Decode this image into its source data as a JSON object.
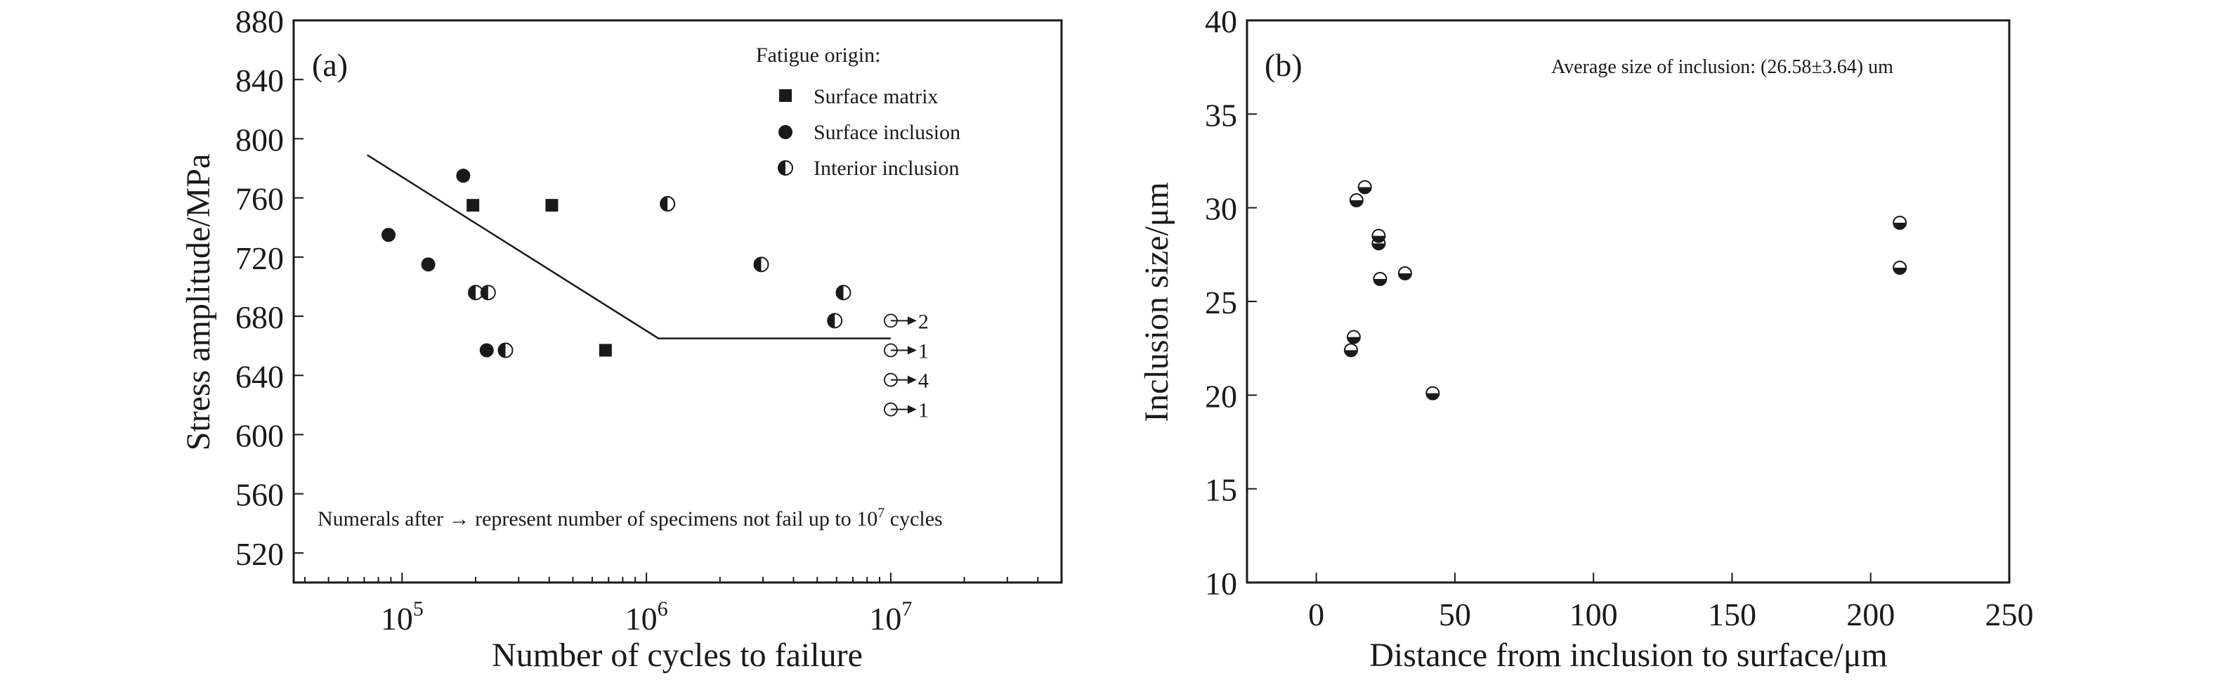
{
  "chart_data": [
    {
      "type": "scatter",
      "panel_label": "(a)",
      "xlabel": "Number of cycles to failure",
      "ylabel": "Stress amplitude/MPa",
      "x_scale": "log",
      "xlim": [
        36000,
        50000000
      ],
      "ylim": [
        500,
        880
      ],
      "x_ticks": [
        {
          "value": 100000,
          "base": "10",
          "exp": "5"
        },
        {
          "value": 1000000,
          "base": "10",
          "exp": "6"
        },
        {
          "value": 10000000,
          "base": "10",
          "exp": "7"
        }
      ],
      "y_ticks": [
        520,
        560,
        600,
        640,
        680,
        720,
        760,
        800,
        840,
        880
      ],
      "legend": {
        "title": "Fatigue origin:",
        "placement": "top-right",
        "entries": [
          {
            "label": "Surface matrix",
            "marker": "square"
          },
          {
            "label": "Surface inclusion",
            "marker": "circle"
          },
          {
            "label": "Interior inclusion",
            "marker": "half-circle"
          }
        ]
      },
      "series": [
        {
          "name": "Surface matrix",
          "marker": "square",
          "points": [
            {
              "x": 195000,
              "y": 755
            },
            {
              "x": 410000,
              "y": 755
            },
            {
              "x": 680000,
              "y": 657
            }
          ]
        },
        {
          "name": "Surface inclusion",
          "marker": "circle",
          "points": [
            {
              "x": 88000,
              "y": 735
            },
            {
              "x": 128000,
              "y": 715
            },
            {
              "x": 178000,
              "y": 775
            },
            {
              "x": 222000,
              "y": 657
            }
          ]
        },
        {
          "name": "Interior inclusion",
          "marker": "half-circle",
          "points": [
            {
              "x": 200000,
              "y": 696
            },
            {
              "x": 225000,
              "y": 696
            },
            {
              "x": 265000,
              "y": 657
            },
            {
              "x": 1220000,
              "y": 756
            },
            {
              "x": 2950000,
              "y": 715
            },
            {
              "x": 5900000,
              "y": 677
            },
            {
              "x": 6400000,
              "y": 696
            }
          ]
        }
      ],
      "runouts": [
        {
          "x": 10000000,
          "y": 677,
          "count": "2"
        },
        {
          "x": 10000000,
          "y": 657,
          "count": "1"
        },
        {
          "x": 10000000,
          "y": 637,
          "count": "4"
        },
        {
          "x": 10000000,
          "y": 617,
          "count": "1"
        }
      ],
      "sn_curve": [
        {
          "x": 72000,
          "y": 789
        },
        {
          "x": 1120000,
          "y": 665
        },
        {
          "x": 10000000,
          "y": 665
        }
      ],
      "annotation": {
        "text": "Numerals after → represent number of specimens not fail up to 10",
        "superscript": "7",
        "suffix": " cycles"
      }
    },
    {
      "type": "scatter",
      "panel_label": "(b)",
      "xlabel": "Distance from inclusion to surface/μm",
      "ylabel": "Inclusion size/μm",
      "xlim": [
        -25,
        250
      ],
      "ylim": [
        10,
        40
      ],
      "x_ticks": [
        0,
        50,
        100,
        150,
        200,
        250
      ],
      "y_ticks": [
        10,
        15,
        20,
        25,
        30,
        35,
        40
      ],
      "annotation": "Average size of inclusion: (26.58±3.64) um",
      "series": [
        {
          "marker": "half-circle",
          "points": [
            {
              "x": 12.5,
              "y": 22.4
            },
            {
              "x": 13.5,
              "y": 23.1
            },
            {
              "x": 14.5,
              "y": 30.4
            },
            {
              "x": 17.5,
              "y": 31.1
            },
            {
              "x": 22.5,
              "y": 28.1
            },
            {
              "x": 22.5,
              "y": 28.5
            },
            {
              "x": 23.0,
              "y": 26.2
            },
            {
              "x": 32.0,
              "y": 26.5
            },
            {
              "x": 42.0,
              "y": 20.1
            },
            {
              "x": 210.5,
              "y": 26.8
            },
            {
              "x": 210.5,
              "y": 29.2
            }
          ]
        }
      ]
    }
  ]
}
